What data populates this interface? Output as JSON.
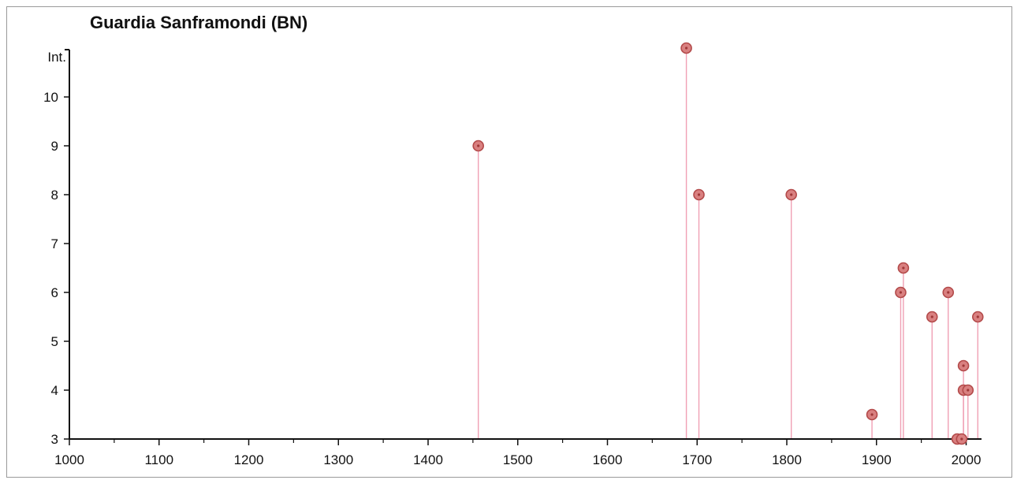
{
  "chart_data": {
    "type": "scatter",
    "title": "Guardia Sanframondi (BN)",
    "xlabel": "",
    "ylabel": "Int.",
    "xlim": [
      1000,
      2020
    ],
    "ylim": [
      3,
      11
    ],
    "x_ticks": [
      1000,
      1100,
      1200,
      1300,
      1400,
      1500,
      1600,
      1700,
      1800,
      1900,
      2000
    ],
    "y_ticks": [
      3,
      4,
      5,
      6,
      7,
      8,
      9,
      10
    ],
    "grid": false,
    "stems": true,
    "colors": {
      "point": "#d98080",
      "point_edge": "#b34a4a",
      "stem": "#f0a0b4",
      "axis": "#111111"
    },
    "points": [
      {
        "x": 1456,
        "y": 9
      },
      {
        "x": 1688,
        "y": 11
      },
      {
        "x": 1702,
        "y": 8
      },
      {
        "x": 1805,
        "y": 8
      },
      {
        "x": 1895,
        "y": 3.5
      },
      {
        "x": 1927,
        "y": 6
      },
      {
        "x": 1930,
        "y": 6.5
      },
      {
        "x": 1962,
        "y": 5.5
      },
      {
        "x": 1980,
        "y": 6
      },
      {
        "x": 1990,
        "y": 3
      },
      {
        "x": 1995,
        "y": 3
      },
      {
        "x": 1997,
        "y": 4.5
      },
      {
        "x": 1997,
        "y": 4
      },
      {
        "x": 2002,
        "y": 4
      },
      {
        "x": 2013,
        "y": 5.5
      }
    ]
  }
}
